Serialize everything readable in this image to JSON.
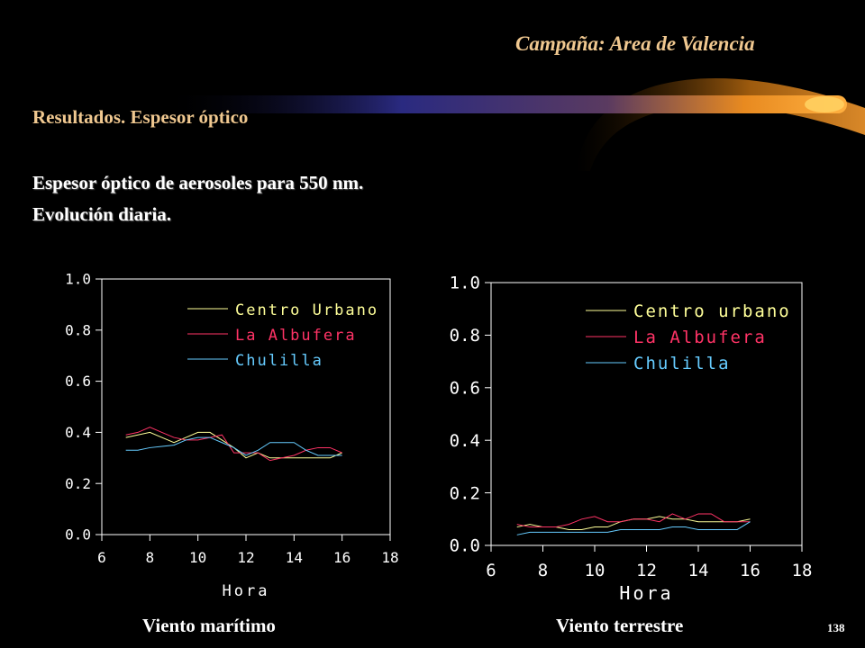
{
  "header": {
    "campaign": "Campaña: Area de Valencia",
    "section": "Resultados. Espesor óptico",
    "description_line1": "Espesor óptico de aerosoles para 550 nm.",
    "description_line2": "Evolución diaria."
  },
  "page_number": "138",
  "chart_data": [
    {
      "type": "line",
      "caption": "Viento marítimo",
      "xlabel": "Hora",
      "ylabel": "",
      "xlim": [
        6,
        18
      ],
      "ylim": [
        0,
        1
      ],
      "xticks": [
        "6",
        "8",
        "10",
        "12",
        "14",
        "16",
        "18"
      ],
      "yticks": [
        "0.0",
        "0.2",
        "0.4",
        "0.6",
        "0.8",
        "1.0"
      ],
      "legend_position": "top-right",
      "grid": false,
      "series": [
        {
          "name": "Centro Urbano",
          "color": "#ffff99",
          "x": [
            7,
            7.5,
            8,
            8.5,
            9,
            9.5,
            10,
            10.5,
            11,
            11.5,
            12,
            12.5,
            13,
            13.5,
            14,
            14.5,
            15,
            15.5,
            16
          ],
          "y": [
            0.38,
            0.39,
            0.4,
            0.38,
            0.36,
            0.38,
            0.4,
            0.4,
            0.37,
            0.34,
            0.3,
            0.32,
            0.3,
            0.3,
            0.3,
            0.3,
            0.3,
            0.3,
            0.32
          ]
        },
        {
          "name": "La Albufera",
          "color": "#ff3366",
          "x": [
            7,
            7.5,
            8,
            8.5,
            9,
            9.5,
            10,
            10.5,
            11,
            11.5,
            12,
            12.5,
            13,
            13.5,
            14,
            14.5,
            15,
            15.5,
            16
          ],
          "y": [
            0.39,
            0.4,
            0.42,
            0.4,
            0.38,
            0.37,
            0.37,
            0.38,
            0.39,
            0.32,
            0.32,
            0.32,
            0.29,
            0.3,
            0.31,
            0.33,
            0.34,
            0.34,
            0.32
          ]
        },
        {
          "name": "Chulilla",
          "color": "#66ccff",
          "x": [
            7,
            7.5,
            8,
            8.5,
            9,
            9.5,
            10,
            10.5,
            11,
            11.5,
            12,
            12.5,
            13,
            13.5,
            14,
            14.5,
            15,
            15.5,
            16
          ],
          "y": [
            0.33,
            0.33,
            0.34,
            0.345,
            0.35,
            0.37,
            0.38,
            0.38,
            0.36,
            0.34,
            0.31,
            0.33,
            0.36,
            0.36,
            0.36,
            0.33,
            0.31,
            0.31,
            0.31
          ]
        }
      ]
    },
    {
      "type": "line",
      "caption": "Viento terrestre",
      "xlabel": "Hora",
      "ylabel": "",
      "xlim": [
        6,
        18
      ],
      "ylim": [
        0,
        1
      ],
      "xticks": [
        "6",
        "8",
        "10",
        "12",
        "14",
        "16",
        "18"
      ],
      "yticks": [
        "0.0",
        "0.2",
        "0.4",
        "0.6",
        "0.8",
        "1.0"
      ],
      "legend_position": "top-right",
      "grid": false,
      "series": [
        {
          "name": "Centro urbano",
          "color": "#ffff99",
          "x": [
            7,
            7.5,
            8,
            8.5,
            9,
            9.5,
            10,
            10.5,
            11,
            11.5,
            12,
            12.5,
            13,
            13.5,
            14,
            14.5,
            15,
            15.5,
            16
          ],
          "y": [
            0.07,
            0.08,
            0.07,
            0.07,
            0.06,
            0.06,
            0.07,
            0.07,
            0.09,
            0.1,
            0.1,
            0.11,
            0.1,
            0.1,
            0.09,
            0.09,
            0.09,
            0.09,
            0.1
          ]
        },
        {
          "name": "La Albufera",
          "color": "#ff3366",
          "x": [
            7,
            7.5,
            8,
            8.5,
            9,
            9.5,
            10,
            10.5,
            11,
            11.5,
            12,
            12.5,
            13,
            13.5,
            14,
            14.5,
            15,
            15.5,
            16
          ],
          "y": [
            0.08,
            0.07,
            0.07,
            0.07,
            0.08,
            0.1,
            0.11,
            0.09,
            0.09,
            0.1,
            0.1,
            0.09,
            0.12,
            0.1,
            0.12,
            0.12,
            0.09,
            0.09,
            0.09
          ]
        },
        {
          "name": "Chulilla",
          "color": "#66ccff",
          "x": [
            7,
            7.5,
            8,
            8.5,
            9,
            9.5,
            10,
            10.5,
            11,
            11.5,
            12,
            12.5,
            13,
            13.5,
            14,
            14.5,
            15,
            15.5,
            16
          ],
          "y": [
            0.04,
            0.05,
            0.05,
            0.05,
            0.05,
            0.05,
            0.05,
            0.05,
            0.06,
            0.06,
            0.06,
            0.06,
            0.07,
            0.07,
            0.06,
            0.06,
            0.06,
            0.06,
            0.09
          ]
        }
      ]
    }
  ],
  "colors": {
    "background": "#000000",
    "heading": "#f0c890",
    "text": "#ffffff",
    "axes": "#ffffff"
  }
}
